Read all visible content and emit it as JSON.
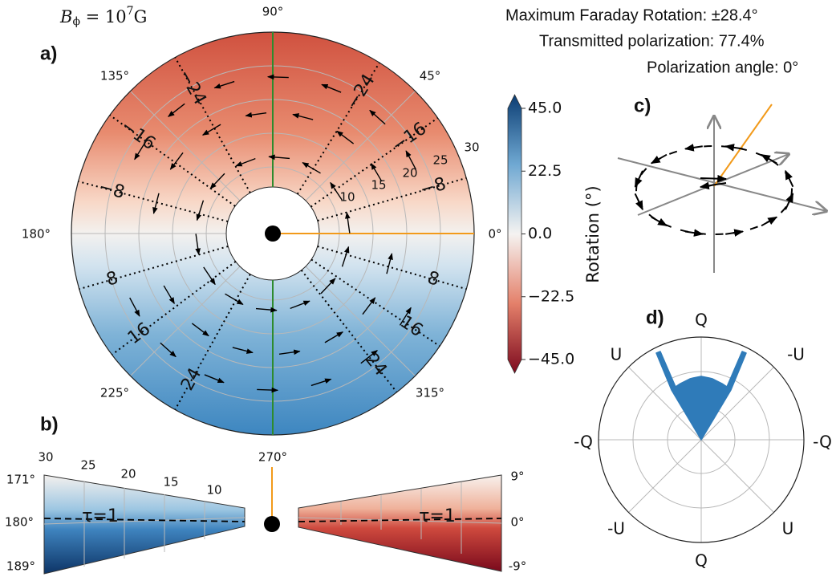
{
  "header": {
    "field": {
      "symbol": "B",
      "subscript": "ϕ",
      "text": " = 10",
      "exponent": "7",
      "unit": "G"
    },
    "lines": [
      "Maximum Faraday Rotation: ±28.4°",
      "Transmitted polarization:  77.4%",
      "Polarization angle: 0°"
    ]
  },
  "panel_a": {
    "label": "a)",
    "angle_labels": [
      "90°",
      "45°",
      "0°",
      "315°",
      "270°",
      "225°",
      "180°",
      "135°"
    ],
    "radius_labels": [
      "10",
      "15",
      "20",
      "25",
      "30"
    ],
    "contour_labels": [
      "−24",
      "−16",
      "−8",
      "8",
      "16",
      "24"
    ]
  },
  "colorbar": {
    "label": "Rotation (°)",
    "lim": [
      -45,
      45
    ],
    "ticks": [
      {
        "value": 45,
        "label": "45.0"
      },
      {
        "value": 22.5,
        "label": "22.5"
      },
      {
        "value": 0,
        "label": "0.0"
      },
      {
        "value": -22.5,
        "label": "−22.5"
      },
      {
        "value": -45,
        "label": "−45.0"
      }
    ]
  },
  "panel_b": {
    "label": "b)",
    "radius_labels": [
      "30",
      "25",
      "20",
      "15",
      "10"
    ],
    "left_angle_labels": [
      "171°",
      "180°",
      "189°"
    ],
    "right_angle_labels": [
      "9°",
      "0°",
      "-9°"
    ],
    "tau_label": "τ=1"
  },
  "panel_c": {
    "label": "c)"
  },
  "panel_d": {
    "label": "d)",
    "axis_labels": [
      "Q",
      "-U",
      "-Q",
      "U",
      "Q",
      "-U",
      "-Q",
      "U"
    ]
  }
}
